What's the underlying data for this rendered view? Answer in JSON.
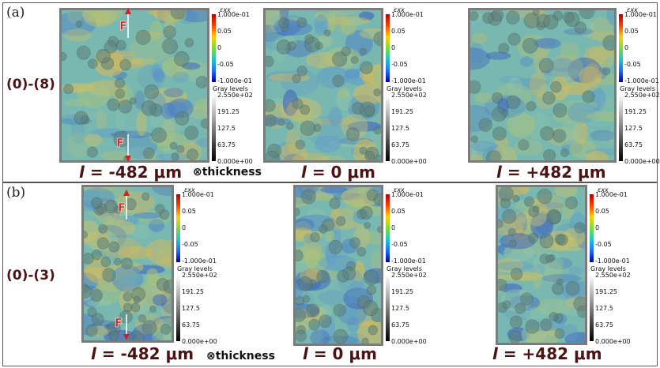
{
  "panels": [
    {
      "label": "(a)",
      "row_label": "(0)-(8)",
      "thickness_label": "thickness",
      "positions": [
        "= -482 μm",
        "= 0 μm",
        "= +482 μm"
      ],
      "length_symbol": "l"
    },
    {
      "label": "(b)",
      "row_label": "(0)-(3)",
      "thickness_label": "thickness",
      "positions": [
        "= -482 μm",
        "= 0 μm",
        "= +482 μm"
      ],
      "length_symbol": "l"
    }
  ],
  "force_label": "F",
  "thickness_symbol": "⊗",
  "colorbar": {
    "strain_title": "εxx",
    "strain_ticks": [
      "1.000e-01",
      "0.05",
      "0",
      "-0.05",
      "-1.000e-01"
    ],
    "gray_title": "Gray levels",
    "gray_ticks": [
      "2.550e+02",
      "191.25",
      "127.5",
      "63.75",
      "0.000e+00"
    ]
  }
}
